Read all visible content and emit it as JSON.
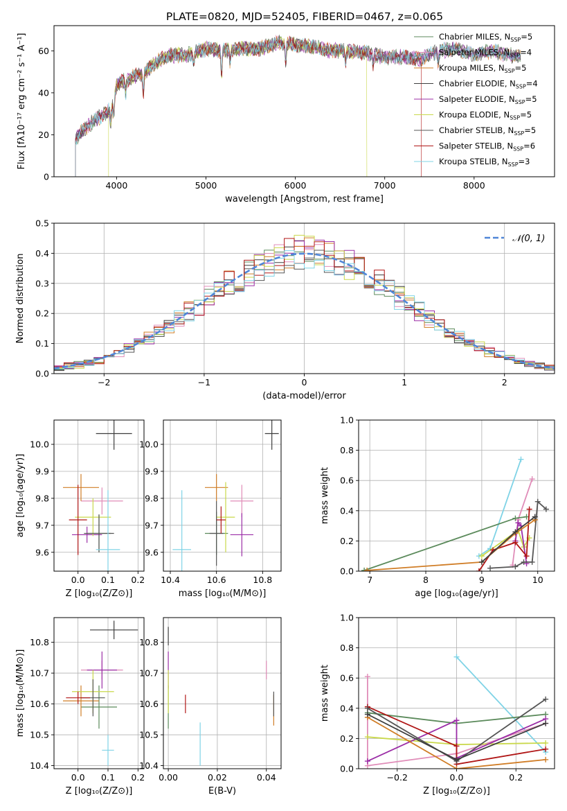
{
  "figure_title": "PLATE=0820, MJD=52405, FIBERID=0467, z=0.065",
  "colors": {
    "Chabrier MILES": "#5b8a5b",
    "Salpeter MILES": "#e08cb8",
    "Kroupa MILES": "#d07d26",
    "Chabrier ELODIE": "#3d3d3d",
    "Salpeter ELODIE": "#9b2da6",
    "Kroupa ELODIE": "#c9d84a",
    "Chabrier STELIB": "#555555",
    "Salpeter STELIB": "#b01515",
    "Kroupa STELIB": "#7fd3e6",
    "normal": "#4f86d8",
    "grid": "#b0b0b0"
  },
  "chart_data": [
    {
      "id": "spectrum",
      "type": "line",
      "title": "",
      "xlabel": "wavelength [Angstrom, rest frame]",
      "ylabel": "Flux [fλ10⁻¹⁷ erg cm⁻² s⁻¹ A⁻¹]",
      "xlim": [
        3300,
        8900
      ],
      "ylim": [
        0,
        72
      ],
      "xticks": [
        4000,
        5000,
        6000,
        7000,
        8000
      ],
      "yticks": [
        0,
        20,
        40,
        60
      ],
      "grid": false,
      "legend_position": "top-right",
      "continuum": {
        "x": [
          3540,
          3600,
          3700,
          3800,
          3900,
          3960,
          4000,
          4100,
          4200,
          4300,
          4400,
          4500,
          4600,
          4800,
          5000,
          5200,
          5400,
          5600,
          5800,
          6000,
          6200,
          6400,
          6600,
          6800,
          7000,
          7200,
          7400,
          7600,
          7800,
          8000,
          8200,
          8400,
          8600,
          8800
        ],
        "y": [
          18,
          21,
          25,
          28,
          31,
          34,
          44,
          46,
          48,
          49,
          53,
          56,
          58,
          58,
          61,
          60,
          61,
          61,
          64,
          63,
          62,
          60,
          60,
          59,
          57,
          57,
          56,
          60,
          61,
          58,
          60,
          58,
          57,
          55
        ]
      },
      "series": [
        {
          "name": "Chabrier MILES, N_SSP=5",
          "n_ssp": "5",
          "xmin": 3540,
          "xmax": 8520,
          "drop_at": null
        },
        {
          "name": "Salpeter MILES, N_SSP=4",
          "n_ssp": "4",
          "xmin": 3540,
          "xmax": 8520,
          "drop_at": null
        },
        {
          "name": "Kroupa MILES, N_SSP=5",
          "n_ssp": "5",
          "xmin": 3540,
          "xmax": 8520,
          "drop_at": null
        },
        {
          "name": "Chabrier ELODIE, N_SSP=4",
          "n_ssp": "4",
          "xmin": 3540,
          "xmax": 8520,
          "drop_at": null
        },
        {
          "name": "Salpeter ELODIE, N_SSP=5",
          "n_ssp": "5",
          "xmin": 3540,
          "xmax": 8520,
          "drop_at": null
        },
        {
          "name": "Kroupa ELODIE, N_SSP=5",
          "n_ssp": "5",
          "xmin": 3910,
          "xmax": 6800,
          "drop_at": 6800
        },
        {
          "name": "Chabrier STELIB, N_SSP=5",
          "n_ssp": "5",
          "xmin": 3540,
          "xmax": 8520,
          "drop_at": null
        },
        {
          "name": "Salpeter STELIB, N_SSP=6",
          "n_ssp": "6",
          "xmin": 3540,
          "xmax": 7410,
          "drop_at": 7410
        },
        {
          "name": "Kroupa STELIB, N_SSP=3",
          "n_ssp": "3",
          "xmin": 3540,
          "xmax": 8520,
          "drop_at": null
        }
      ]
    },
    {
      "id": "residuals",
      "type": "histogram",
      "title": "",
      "xlabel": "(data-model)/error",
      "ylabel": "Normed distribution",
      "xlim": [
        -2.5,
        2.5
      ],
      "ylim": [
        0,
        0.5
      ],
      "xticks": [
        -2,
        -1,
        0,
        1,
        2
      ],
      "yticks": [
        0.0,
        0.1,
        0.2,
        0.3,
        0.4,
        0.5
      ],
      "grid": true,
      "legend_position": "top-right",
      "legend_label": "𝒩(0, 1)",
      "bin_width": 0.1,
      "bin_start": -2.5,
      "n_bins": 50
    },
    {
      "id": "age_vs_Z",
      "type": "errorbar",
      "title": "",
      "xlabel": "Z [log₁₀(Z/Z⊙)]",
      "ylabel": "age  [log₁₀(age/yr)]",
      "xlim": [
        -0.08,
        0.22
      ],
      "ylim": [
        9.53,
        10.09
      ],
      "xticks": [
        0.0,
        0.1,
        0.2
      ],
      "yticks": [
        9.6,
        9.7,
        9.8,
        9.9,
        10.0
      ],
      "grid": true,
      "points": [
        {
          "model": "Chabrier MILES",
          "x": 0.07,
          "xerr": 0.04,
          "y": 9.67,
          "yerr": 0.07
        },
        {
          "model": "Salpeter MILES",
          "x": 0.08,
          "xerr": 0.07,
          "y": 9.79,
          "yerr": 0.05
        },
        {
          "model": "Kroupa MILES",
          "x": 0.01,
          "xerr": 0.06,
          "y": 9.84,
          "yerr": 0.05
        },
        {
          "model": "Chabrier ELODIE",
          "x": 0.12,
          "xerr": 0.06,
          "y": 10.04,
          "yerr": 0.06
        },
        {
          "model": "Salpeter ELODIE",
          "x": 0.03,
          "xerr": 0.05,
          "y": 9.665,
          "yerr": 0.03
        },
        {
          "model": "Kroupa ELODIE",
          "x": 0.05,
          "xerr": 0.06,
          "y": 9.73,
          "yerr": 0.07
        },
        {
          "model": "Chabrier STELIB",
          "x": 0.07,
          "xerr": 0.05,
          "y": 9.67,
          "yerr": 0.07
        },
        {
          "model": "Salpeter STELIB",
          "x": 0.0,
          "xerr": 0.03,
          "y": 9.72,
          "yerr": 0.13
        },
        {
          "model": "Kroupa STELIB",
          "x": 0.1,
          "xerr": 0.04,
          "y": 9.61,
          "yerr": 0.22
        }
      ]
    },
    {
      "id": "age_vs_mass",
      "type": "errorbar",
      "title": "",
      "xlabel": "mass [log₁₀(M/M⊙)]",
      "ylabel": "",
      "xlim": [
        10.37,
        10.88
      ],
      "ylim": [
        9.53,
        10.09
      ],
      "xticks": [
        10.4,
        10.6,
        10.8
      ],
      "yticks": [
        9.6,
        9.7,
        9.8,
        9.9,
        10.0
      ],
      "grid": true,
      "points": [
        {
          "model": "Chabrier MILES",
          "x": 10.6,
          "xerr": 0.05,
          "y": 9.67,
          "yerr": 0.08
        },
        {
          "model": "Salpeter MILES",
          "x": 10.71,
          "xerr": 0.05,
          "y": 9.79,
          "yerr": 0.06
        },
        {
          "model": "Kroupa MILES",
          "x": 10.6,
          "xerr": 0.05,
          "y": 9.84,
          "yerr": 0.05
        },
        {
          "model": "Chabrier ELODIE",
          "x": 10.84,
          "xerr": 0.03,
          "y": 10.04,
          "yerr": 0.06
        },
        {
          "model": "Salpeter ELODIE",
          "x": 10.71,
          "xerr": 0.05,
          "y": 9.665,
          "yerr": 0.08
        },
        {
          "model": "Kroupa ELODIE",
          "x": 10.64,
          "xerr": 0.04,
          "y": 9.73,
          "yerr": 0.13
        },
        {
          "model": "Chabrier STELIB",
          "x": 10.6,
          "xerr": 0.03,
          "y": 9.67,
          "yerr": 0.12
        },
        {
          "model": "Salpeter STELIB",
          "x": 10.62,
          "xerr": 0.02,
          "y": 9.72,
          "yerr": 0.05
        },
        {
          "model": "Kroupa STELIB",
          "x": 10.45,
          "xerr": 0.04,
          "y": 9.61,
          "yerr": 0.22
        }
      ]
    },
    {
      "id": "weight_vs_age",
      "type": "line",
      "title": "",
      "xlabel": "age  [log₁₀(age/yr)]",
      "ylabel": "mass weight",
      "xlim": [
        6.8,
        10.3
      ],
      "ylim": [
        0,
        1.0
      ],
      "xticks": [
        7,
        8,
        9,
        10
      ],
      "yticks": [
        0.0,
        0.2,
        0.4,
        0.6,
        0.8,
        1.0
      ],
      "grid": true,
      "series": [
        {
          "model": "Kroupa STELIB",
          "x": [
            8.95,
            9.15,
            9.7
          ],
          "y": [
            0.1,
            0.15,
            0.74
          ]
        },
        {
          "model": "Salpeter MILES",
          "x": [
            9.55,
            9.65,
            9.9
          ],
          "y": [
            0.04,
            0.34,
            0.61
          ]
        },
        {
          "model": "Chabrier MILES",
          "x": [
            6.9,
            9.6,
            9.8
          ],
          "y": [
            0.005,
            0.35,
            0.36
          ]
        },
        {
          "model": "Kroupa ELODIE",
          "x": [
            9.0,
            9.65,
            9.75,
            9.85
          ],
          "y": [
            0.1,
            0.27,
            0.16,
            0.22
          ]
        },
        {
          "model": "Salpeter ELODIE",
          "x": [
            9.6,
            9.65,
            9.7,
            9.8
          ],
          "y": [
            0.2,
            0.32,
            0.3,
            0.05
          ]
        },
        {
          "model": "Salpeter STELIB",
          "x": [
            8.95,
            9.2,
            9.6,
            9.8,
            9.85
          ],
          "y": [
            0.0,
            0.14,
            0.19,
            0.1,
            0.41
          ]
        },
        {
          "model": "Chabrier STELIB",
          "x": [
            9.15,
            9.6,
            9.75,
            9.9,
            10.0,
            10.15
          ],
          "y": [
            0.02,
            0.03,
            0.06,
            0.06,
            0.46,
            0.41
          ]
        },
        {
          "model": "Kroupa MILES",
          "x": [
            6.95,
            9.0,
            9.6,
            9.95
          ],
          "y": [
            0.005,
            0.06,
            0.25,
            0.34
          ]
        },
        {
          "model": "Chabrier ELODIE",
          "x": [
            9.0,
            9.6,
            9.95
          ],
          "y": [
            0.06,
            0.26,
            0.36
          ]
        }
      ]
    },
    {
      "id": "mass_vs_Z",
      "type": "errorbar",
      "title": "",
      "xlabel": "Z [log₁₀(Z/Z⊙)]",
      "ylabel": "mass [log₁₀(M/M⊙)]",
      "xlim": [
        -0.08,
        0.22
      ],
      "ylim": [
        10.39,
        10.88
      ],
      "xticks": [
        0.0,
        0.1,
        0.2
      ],
      "yticks": [
        10.4,
        10.5,
        10.6,
        10.7,
        10.8
      ],
      "grid": true,
      "points": [
        {
          "model": "Chabrier MILES",
          "x": 0.07,
          "xerr": 0.06,
          "y": 10.59,
          "yerr": 0.07
        },
        {
          "model": "Salpeter MILES",
          "x": 0.08,
          "xerr": 0.07,
          "y": 10.71,
          "yerr": 0.03
        },
        {
          "model": "Kroupa MILES",
          "x": 0.01,
          "xerr": 0.06,
          "y": 10.61,
          "yerr": 0.05
        },
        {
          "model": "Chabrier ELODIE",
          "x": 0.12,
          "xerr": 0.08,
          "y": 10.84,
          "yerr": 0.03
        },
        {
          "model": "Salpeter ELODIE",
          "x": 0.08,
          "xerr": 0.05,
          "y": 10.71,
          "yerr": 0.06
        },
        {
          "model": "Kroupa ELODIE",
          "x": 0.05,
          "xerr": 0.07,
          "y": 10.64,
          "yerr": 0.07
        },
        {
          "model": "Chabrier STELIB",
          "x": 0.05,
          "xerr": 0.04,
          "y": 10.62,
          "yerr": 0.06
        },
        {
          "model": "Salpeter STELIB",
          "x": 0.0,
          "xerr": 0.04,
          "y": 10.62,
          "yerr": 0.02
        },
        {
          "model": "Kroupa STELIB",
          "x": 0.1,
          "xerr": 0.02,
          "y": 10.45,
          "yerr": 0.05
        }
      ]
    },
    {
      "id": "mass_vs_ebv",
      "type": "errorbar",
      "title": "",
      "xlabel": "E(B-V)",
      "ylabel": "",
      "xlim": [
        -0.002,
        0.046
      ],
      "ylim": [
        10.39,
        10.88
      ],
      "xticks": [
        0.0,
        0.02,
        0.04
      ],
      "yticks": [
        10.4,
        10.5,
        10.6,
        10.7,
        10.8
      ],
      "grid": true,
      "points": [
        {
          "model": "Chabrier MILES",
          "x": 0.0,
          "xerr": 0.0,
          "y": 10.59,
          "yerr": 0.07
        },
        {
          "model": "Salpeter MILES",
          "x": 0.04,
          "xerr": 0.0,
          "y": 10.71,
          "yerr": 0.03
        },
        {
          "model": "Kroupa MILES",
          "x": 0.043,
          "xerr": 0.0,
          "y": 10.58,
          "yerr": 0.05
        },
        {
          "model": "Chabrier ELODIE",
          "x": 0.0,
          "xerr": 0.0,
          "y": 10.82,
          "yerr": 0.03
        },
        {
          "model": "Salpeter ELODIE",
          "x": 0.0,
          "xerr": 0.0,
          "y": 10.71,
          "yerr": 0.06
        },
        {
          "model": "Kroupa ELODIE",
          "x": 0.0,
          "xerr": 0.0,
          "y": 10.64,
          "yerr": 0.07
        },
        {
          "model": "Chabrier STELIB",
          "x": 0.043,
          "xerr": 0.0,
          "y": 10.6,
          "yerr": 0.04
        },
        {
          "model": "Salpeter STELIB",
          "x": 0.007,
          "xerr": 0.0,
          "y": 10.6,
          "yerr": 0.03
        },
        {
          "model": "Kroupa STELIB",
          "x": 0.013,
          "xerr": 0.0,
          "y": 10.47,
          "yerr": 0.07
        }
      ]
    },
    {
      "id": "weight_vs_Z",
      "type": "line",
      "title": "",
      "xlabel": "Z [log₁₀(Z/Z⊙)]",
      "ylabel": "mass weight",
      "xlim": [
        -0.33,
        0.33
      ],
      "ylim": [
        0,
        1.0
      ],
      "xticks": [
        -0.2,
        0.0,
        0.2
      ],
      "yticks": [
        0.0,
        0.2,
        0.4,
        0.6,
        0.8,
        1.0
      ],
      "grid": true,
      "series": [
        {
          "model": "Kroupa STELIB",
          "x": [
            0.0,
            0.3
          ],
          "y": [
            0.74,
            0.11
          ]
        },
        {
          "model": "Salpeter MILES",
          "x": [
            -0.3,
            -0.3,
            0.0,
            0.3
          ],
          "y": [
            0.61,
            0.02,
            0.1,
            0.3
          ]
        },
        {
          "model": "Chabrier MILES",
          "x": [
            -0.3,
            0.0,
            0.3
          ],
          "y": [
            0.37,
            0.3,
            0.36
          ]
        },
        {
          "model": "Kroupa ELODIE",
          "x": [
            -0.3,
            0.0,
            0.3
          ],
          "y": [
            0.21,
            0.16,
            0.17
          ]
        },
        {
          "model": "Salpeter ELODIE",
          "x": [
            -0.3,
            0.0,
            0.0,
            0.3
          ],
          "y": [
            0.05,
            0.32,
            0.07,
            0.33
          ]
        },
        {
          "model": "Salpeter STELIB",
          "x": [
            -0.3,
            0.0,
            0.0,
            0.3
          ],
          "y": [
            0.41,
            0.15,
            0.03,
            0.13
          ]
        },
        {
          "model": "Chabrier STELIB",
          "x": [
            -0.3,
            0.0,
            0.3
          ],
          "y": [
            0.4,
            0.05,
            0.46
          ]
        },
        {
          "model": "Kroupa MILES",
          "x": [
            -0.3,
            0.0,
            0.3
          ],
          "y": [
            0.34,
            0.0,
            0.06
          ]
        },
        {
          "model": "Chabrier ELODIE",
          "x": [
            -0.3,
            0.0,
            0.3
          ],
          "y": [
            0.36,
            0.06,
            0.3
          ]
        }
      ]
    }
  ]
}
